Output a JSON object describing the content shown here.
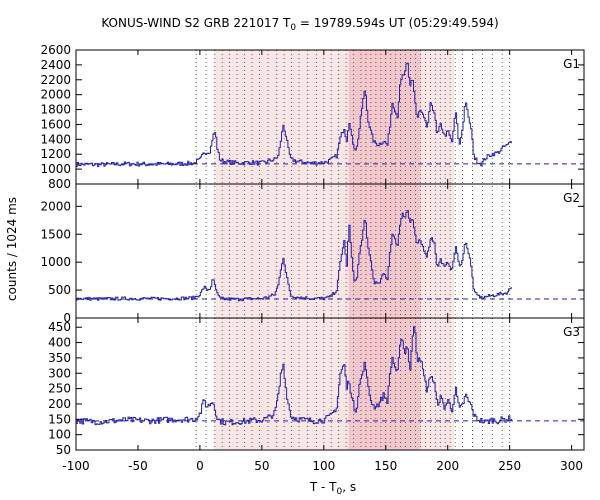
{
  "chart_data": {
    "type": "line",
    "title": "KONUS-WIND S2 GRB 221017 T",
    "title_sub": "0",
    "title_rest": " = 19789.594s UT (05:29:49.594)",
    "xlabel": "T - T",
    "xlabel_sub": "0",
    "xlabel_rest": ", s",
    "ylabel": "counts / 1024 ms",
    "xlim": [
      -100,
      310
    ],
    "x_ticks": [
      -100,
      -50,
      0,
      50,
      100,
      150,
      200,
      250,
      300
    ],
    "line_color": "#2222aa",
    "shade_light": "#fde6e6",
    "shade_dark": "#f6c8cc",
    "shade_light_range": [
      12,
      205
    ],
    "shade_dark_range": [
      120,
      178
    ],
    "vertical_lines": [
      -3,
      5,
      12,
      18,
      24,
      30,
      36,
      42,
      48,
      55,
      62,
      68,
      74,
      80,
      87,
      94,
      100,
      106,
      112,
      118,
      124,
      130,
      134,
      138,
      142,
      146,
      150,
      154,
      158,
      162,
      166,
      170,
      174,
      178,
      182,
      186,
      190,
      194,
      198,
      202,
      206,
      212,
      220,
      228,
      236,
      244,
      250
    ],
    "panels": [
      {
        "label": "G1",
        "ylim": [
          800,
          2600
        ],
        "y_ticks": [
          800,
          1000,
          1200,
          1400,
          1600,
          1800,
          2000,
          2200,
          2400,
          2600
        ],
        "background": 1070,
        "anchors": [
          [
            -100,
            1065
          ],
          [
            -80,
            1060
          ],
          [
            -60,
            1070
          ],
          [
            -40,
            1065
          ],
          [
            -20,
            1070
          ],
          [
            -5,
            1080
          ],
          [
            0,
            1130
          ],
          [
            3,
            1220
          ],
          [
            6,
            1230
          ],
          [
            8,
            1250
          ],
          [
            10,
            1440
          ],
          [
            12,
            1500
          ],
          [
            14,
            1240
          ],
          [
            16,
            1120
          ],
          [
            20,
            1100
          ],
          [
            30,
            1080
          ],
          [
            40,
            1090
          ],
          [
            50,
            1080
          ],
          [
            55,
            1110
          ],
          [
            60,
            1130
          ],
          [
            63,
            1180
          ],
          [
            65,
            1400
          ],
          [
            67,
            1600
          ],
          [
            69,
            1450
          ],
          [
            71,
            1260
          ],
          [
            73,
            1130
          ],
          [
            80,
            1100
          ],
          [
            90,
            1080
          ],
          [
            100,
            1090
          ],
          [
            105,
            1120
          ],
          [
            110,
            1180
          ],
          [
            113,
            1420
          ],
          [
            116,
            1560
          ],
          [
            118,
            1380
          ],
          [
            120,
            1660
          ],
          [
            122,
            1440
          ],
          [
            124,
            1300
          ],
          [
            126,
            1260
          ],
          [
            128,
            1500
          ],
          [
            131,
            1900
          ],
          [
            133,
            2080
          ],
          [
            135,
            1700
          ],
          [
            137,
            1540
          ],
          [
            140,
            1360
          ],
          [
            144,
            1330
          ],
          [
            148,
            1380
          ],
          [
            151,
            1320
          ],
          [
            153,
            1600
          ],
          [
            155,
            1900
          ],
          [
            157,
            1800
          ],
          [
            159,
            1700
          ],
          [
            161,
            2100
          ],
          [
            163,
            2250
          ],
          [
            165,
            2280
          ],
          [
            167,
            2450
          ],
          [
            169,
            2100
          ],
          [
            171,
            2250
          ],
          [
            173,
            1950
          ],
          [
            175,
            1650
          ],
          [
            177,
            1800
          ],
          [
            180,
            1700
          ],
          [
            183,
            1550
          ],
          [
            186,
            1900
          ],
          [
            189,
            1750
          ],
          [
            191,
            1450
          ],
          [
            194,
            1600
          ],
          [
            197,
            1450
          ],
          [
            200,
            1500
          ],
          [
            203,
            1350
          ],
          [
            206,
            1780
          ],
          [
            209,
            1300
          ],
          [
            212,
            1600
          ],
          [
            214,
            1950
          ],
          [
            216,
            1700
          ],
          [
            218,
            1600
          ],
          [
            221,
            1150
          ],
          [
            224,
            1100
          ],
          [
            227,
            1070
          ],
          [
            230,
            1150
          ],
          [
            235,
            1200
          ],
          [
            240,
            1220
          ],
          [
            245,
            1300
          ],
          [
            248,
            1320
          ],
          [
            251,
            1380
          ]
        ],
        "noise": 30
      },
      {
        "label": "G2",
        "ylim": [
          0,
          2400
        ],
        "y_ticks": [
          0,
          500,
          1000,
          1500,
          2000
        ],
        "background": 340,
        "anchors": [
          [
            -100,
            350
          ],
          [
            -80,
            340
          ],
          [
            -60,
            350
          ],
          [
            -40,
            345
          ],
          [
            -20,
            350
          ],
          [
            -5,
            360
          ],
          [
            0,
            430
          ],
          [
            3,
            560
          ],
          [
            5,
            500
          ],
          [
            8,
            530
          ],
          [
            10,
            700
          ],
          [
            12,
            560
          ],
          [
            14,
            400
          ],
          [
            16,
            350
          ],
          [
            20,
            340
          ],
          [
            30,
            335
          ],
          [
            40,
            345
          ],
          [
            50,
            350
          ],
          [
            55,
            380
          ],
          [
            60,
            420
          ],
          [
            63,
            600
          ],
          [
            65,
            900
          ],
          [
            67,
            1100
          ],
          [
            69,
            800
          ],
          [
            71,
            600
          ],
          [
            73,
            400
          ],
          [
            80,
            370
          ],
          [
            90,
            350
          ],
          [
            100,
            350
          ],
          [
            105,
            380
          ],
          [
            110,
            500
          ],
          [
            113,
            1000
          ],
          [
            116,
            1400
          ],
          [
            118,
            900
          ],
          [
            120,
            1700
          ],
          [
            122,
            1100
          ],
          [
            124,
            700
          ],
          [
            126,
            650
          ],
          [
            128,
            1100
          ],
          [
            131,
            1500
          ],
          [
            133,
            1800
          ],
          [
            135,
            1300
          ],
          [
            137,
            1100
          ],
          [
            140,
            650
          ],
          [
            144,
            600
          ],
          [
            148,
            800
          ],
          [
            151,
            700
          ],
          [
            153,
            1200
          ],
          [
            155,
            1500
          ],
          [
            157,
            1400
          ],
          [
            159,
            1300
          ],
          [
            161,
            1650
          ],
          [
            163,
            1900
          ],
          [
            165,
            1800
          ],
          [
            167,
            1950
          ],
          [
            169,
            1700
          ],
          [
            171,
            1800
          ],
          [
            173,
            1500
          ],
          [
            175,
            1300
          ],
          [
            177,
            1400
          ],
          [
            180,
            1250
          ],
          [
            183,
            1100
          ],
          [
            186,
            1450
          ],
          [
            189,
            1350
          ],
          [
            191,
            900
          ],
          [
            194,
            1050
          ],
          [
            197,
            900
          ],
          [
            200,
            1000
          ],
          [
            203,
            850
          ],
          [
            206,
            1300
          ],
          [
            209,
            900
          ],
          [
            212,
            1100
          ],
          [
            214,
            1400
          ],
          [
            216,
            1200
          ],
          [
            218,
            1000
          ],
          [
            221,
            450
          ],
          [
            224,
            400
          ],
          [
            227,
            360
          ],
          [
            230,
            380
          ],
          [
            235,
            400
          ],
          [
            240,
            420
          ],
          [
            245,
            440
          ],
          [
            248,
            460
          ],
          [
            251,
            560
          ]
        ],
        "noise": 30
      },
      {
        "label": "G3",
        "ylim": [
          50,
          480
        ],
        "y_ticks": [
          50,
          100,
          150,
          200,
          250,
          300,
          350,
          400,
          450
        ],
        "background": 145,
        "anchors": [
          [
            -100,
            145
          ],
          [
            -80,
            142
          ],
          [
            -60,
            148
          ],
          [
            -40,
            145
          ],
          [
            -20,
            150
          ],
          [
            -5,
            150
          ],
          [
            0,
            170
          ],
          [
            3,
            215
          ],
          [
            5,
            190
          ],
          [
            8,
            200
          ],
          [
            10,
            210
          ],
          [
            12,
            180
          ],
          [
            14,
            150
          ],
          [
            16,
            145
          ],
          [
            20,
            140
          ],
          [
            30,
            142
          ],
          [
            40,
            145
          ],
          [
            50,
            148
          ],
          [
            55,
            155
          ],
          [
            60,
            170
          ],
          [
            63,
            230
          ],
          [
            65,
            300
          ],
          [
            67,
            330
          ],
          [
            69,
            250
          ],
          [
            71,
            200
          ],
          [
            73,
            160
          ],
          [
            80,
            150
          ],
          [
            90,
            145
          ],
          [
            100,
            148
          ],
          [
            105,
            160
          ],
          [
            110,
            190
          ],
          [
            113,
            300
          ],
          [
            116,
            330
          ],
          [
            118,
            250
          ],
          [
            120,
            280
          ],
          [
            122,
            220
          ],
          [
            124,
            190
          ],
          [
            126,
            180
          ],
          [
            128,
            260
          ],
          [
            131,
            300
          ],
          [
            133,
            340
          ],
          [
            135,
            260
          ],
          [
            137,
            220
          ],
          [
            140,
            190
          ],
          [
            144,
            200
          ],
          [
            148,
            230
          ],
          [
            151,
            210
          ],
          [
            153,
            300
          ],
          [
            155,
            350
          ],
          [
            157,
            320
          ],
          [
            159,
            300
          ],
          [
            161,
            380
          ],
          [
            163,
            420
          ],
          [
            165,
            360
          ],
          [
            167,
            400
          ],
          [
            169,
            300
          ],
          [
            171,
            410
          ],
          [
            173,
            460
          ],
          [
            175,
            340
          ],
          [
            177,
            360
          ],
          [
            180,
            300
          ],
          [
            183,
            240
          ],
          [
            186,
            300
          ],
          [
            189,
            260
          ],
          [
            191,
            200
          ],
          [
            194,
            220
          ],
          [
            197,
            190
          ],
          [
            200,
            210
          ],
          [
            203,
            180
          ],
          [
            206,
            250
          ],
          [
            209,
            180
          ],
          [
            212,
            200
          ],
          [
            214,
            230
          ],
          [
            216,
            210
          ],
          [
            218,
            200
          ],
          [
            221,
            160
          ],
          [
            224,
            150
          ],
          [
            227,
            145
          ],
          [
            230,
            140
          ],
          [
            235,
            148
          ],
          [
            240,
            145
          ],
          [
            245,
            150
          ],
          [
            248,
            150
          ],
          [
            251,
            155
          ]
        ],
        "noise": 10
      }
    ]
  }
}
